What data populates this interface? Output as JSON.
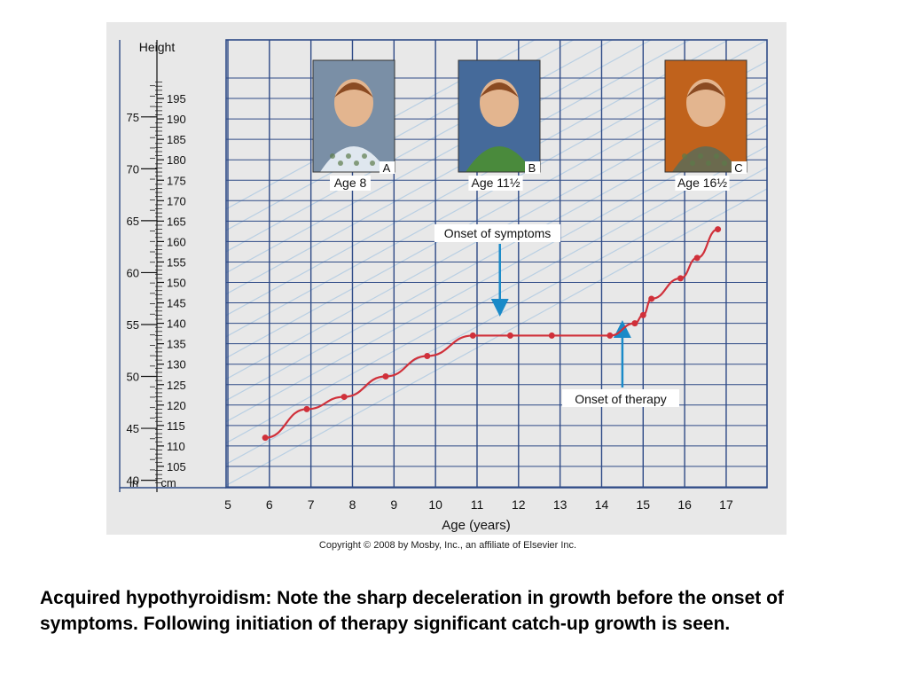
{
  "chart_data": {
    "type": "line",
    "title": "",
    "xlabel": "Age (years)",
    "ylabel": "Height",
    "y_units_left": "in",
    "y_units_right": "cm",
    "x_ticks": [
      5,
      6,
      7,
      8,
      9,
      10,
      11,
      12,
      13,
      14,
      15,
      16,
      17
    ],
    "y_ticks_cm": [
      105,
      110,
      115,
      120,
      125,
      130,
      135,
      140,
      145,
      150,
      155,
      160,
      165,
      170,
      175,
      180,
      185,
      190,
      195
    ],
    "y_ticks_in": [
      40,
      45,
      50,
      55,
      60,
      65,
      70,
      75
    ],
    "xlim": [
      4,
      18
    ],
    "ylim_cm": [
      100,
      200
    ],
    "grid": true,
    "series": [
      {
        "color": "#d0303a",
        "x": [
          5.9,
          6.9,
          7.8,
          8.8,
          9.8,
          10.9,
          11.8,
          12.8,
          14.2,
          14.8,
          15.0,
          15.2,
          15.9,
          16.3,
          16.8
        ],
        "y": [
          112,
          119,
          122,
          127,
          132,
          137,
          137,
          137,
          137,
          140,
          142,
          146,
          151,
          156,
          163
        ]
      }
    ],
    "photos": [
      {
        "letter": "A",
        "label": "Age 8"
      },
      {
        "letter": "B",
        "label": "Age 11½"
      },
      {
        "letter": "C",
        "label": "Age 16½"
      }
    ],
    "annotations": [
      {
        "text": "Onset of symptoms",
        "arrow_age": 11.55
      },
      {
        "text": "Onset of therapy",
        "arrow_age": 14.5
      }
    ]
  },
  "copyright": "Copyright © 2008 by Mosby, Inc., an affiliate of Elsevier Inc.",
  "caption": "Acquired hypothyroidism: Note the sharp deceleration in growth before the onset of symptoms. Following initiation of therapy significant catch-up growth is seen.",
  "colors": {
    "panel": "#e8e8e8",
    "grid": "#2e4a86",
    "curve": "#d0303a",
    "percentile_bands": "#b9cfe3",
    "arrow": "#1a8ac8"
  }
}
